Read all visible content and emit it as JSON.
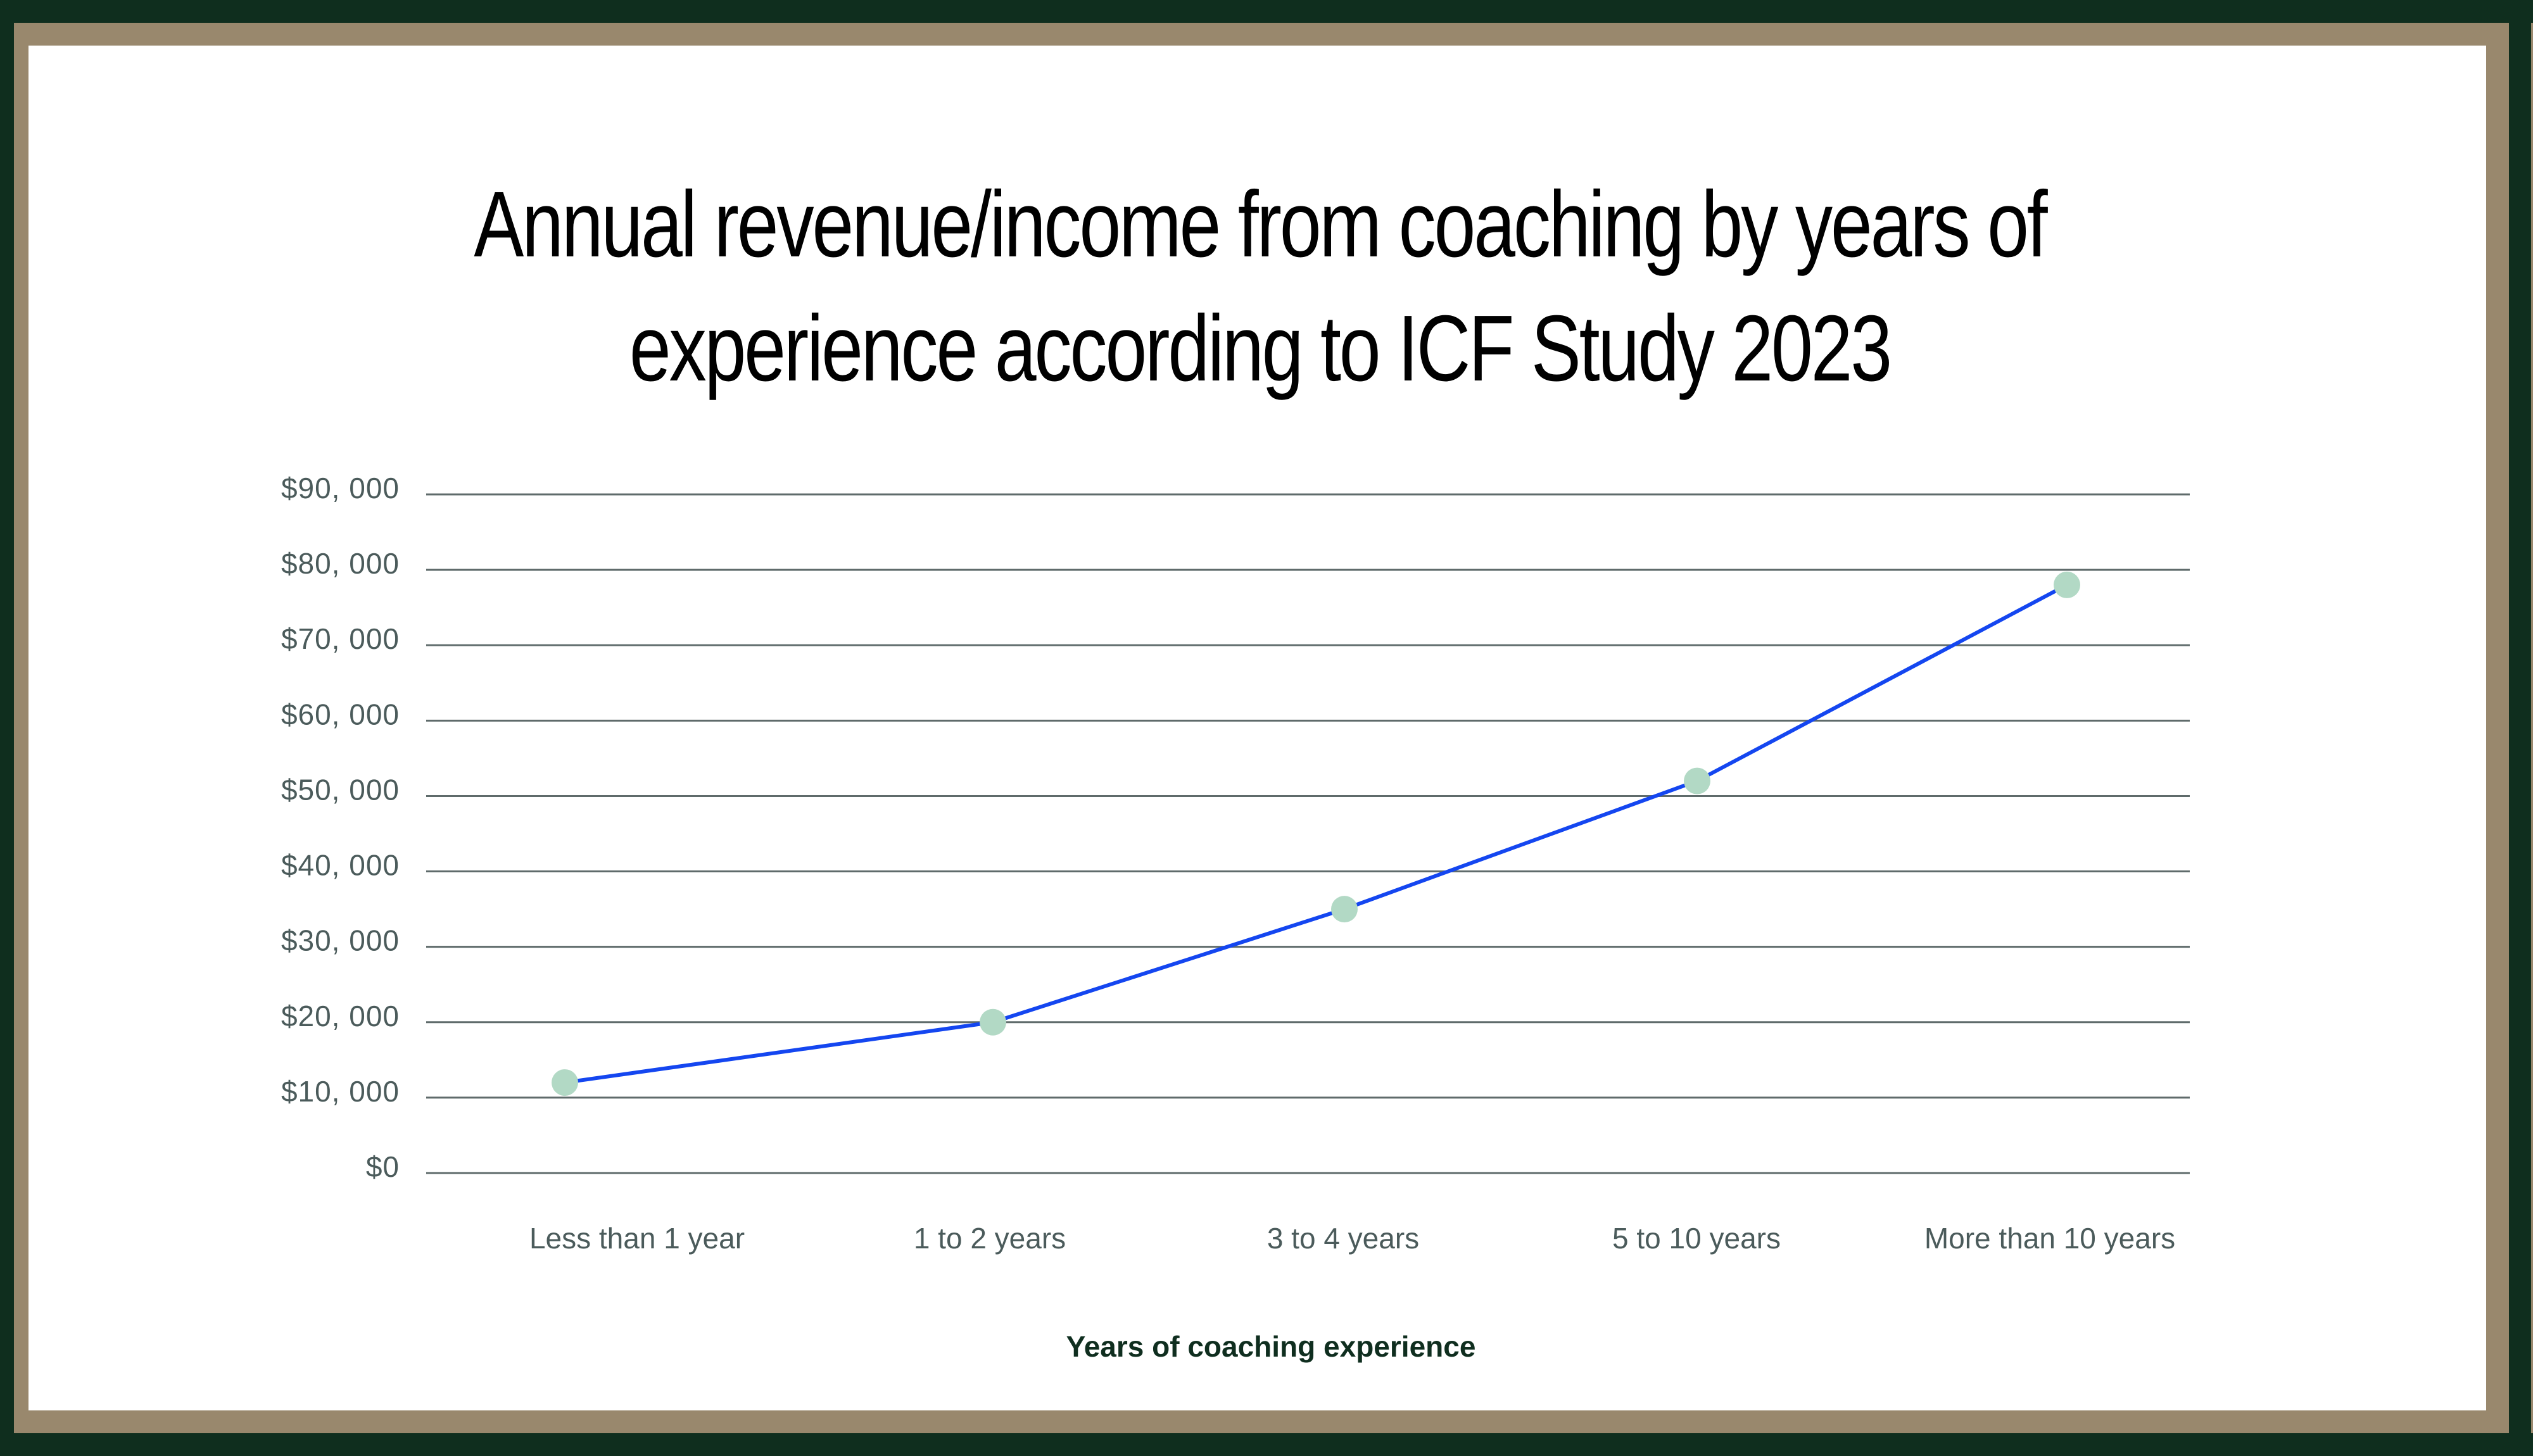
{
  "title": {
    "line1": "Annual revenue/income from coaching by years of",
    "line2": "experience according to ICF Study 2023"
  },
  "colors": {
    "outer_border": "#0f2e1e",
    "inner_border": "#99886d",
    "background": "#ffffff",
    "gridline": "#5f6b6b",
    "line": "#1446f0",
    "marker": "#b2d9c5",
    "tick_text": "#4b5b5b",
    "axis_title": "#0f2e1f"
  },
  "chart_data": {
    "type": "line",
    "title": "Annual revenue/income from coaching by years of experience according to ICF Study 2023",
    "xlabel": "Years of coaching experience",
    "ylabel": "",
    "categories": [
      "Less than 1 year",
      "1 to 2 years",
      "3 to 4 years",
      "5 to 10 years",
      "More than 10 years"
    ],
    "series": [
      {
        "name": "Annual revenue/income",
        "values": [
          12000,
          20000,
          35000,
          52000,
          78000
        ]
      }
    ],
    "yticks": [
      0,
      10000,
      20000,
      30000,
      40000,
      50000,
      60000,
      70000,
      80000,
      90000
    ],
    "ytick_labels": [
      "$0",
      "$10, 000",
      "$20, 000",
      "$30, 000",
      "$40, 000",
      "$50, 000",
      "$60, 000",
      "$70, 000",
      "$80, 000",
      "$90, 000"
    ],
    "ylim": [
      0,
      90000
    ],
    "grid": true,
    "legend": "none",
    "markers": true
  }
}
